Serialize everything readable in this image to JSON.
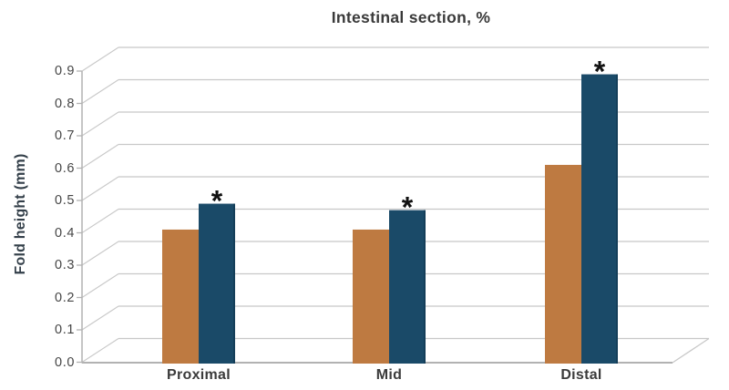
{
  "chart_data": {
    "type": "bar",
    "style": "grouped bars with pseudo-3D depth gridlines, no legend",
    "title": "Intestinal section, %",
    "xlabel": "",
    "ylabel": "Fold height (mm)",
    "categories": [
      "Proximal",
      "Mid",
      "Distal"
    ],
    "ytick_labels": [
      "0.0",
      "0.1",
      "0.2",
      "0.3",
      "0.4",
      "0.5",
      "0.6",
      "0.7",
      "0.8",
      "0.9"
    ],
    "ylim": [
      0,
      0.9
    ],
    "ytick_step": 0.1,
    "grid": true,
    "legend": false,
    "significance_marker": "*",
    "marker_color": "#111111",
    "series": [
      {
        "name": "orange",
        "color": "#BE7A41",
        "values": [
          0.41,
          0.41,
          0.61
        ],
        "markers": [
          "",
          "",
          ""
        ]
      },
      {
        "name": "blue",
        "color": "#1A4A68",
        "edge_color": "#143E59",
        "values": [
          0.49,
          0.47,
          0.89
        ],
        "markers": [
          "*",
          "*",
          "*"
        ]
      }
    ]
  },
  "colors": {
    "background": "#ffffff",
    "grid": "#c8c8c8",
    "axis": "#b2b2b2",
    "title_text": "#3a3a3a",
    "tick_text": "#454545",
    "category_text": "#3b3b3b",
    "ylabel_text": "#333f49"
  }
}
